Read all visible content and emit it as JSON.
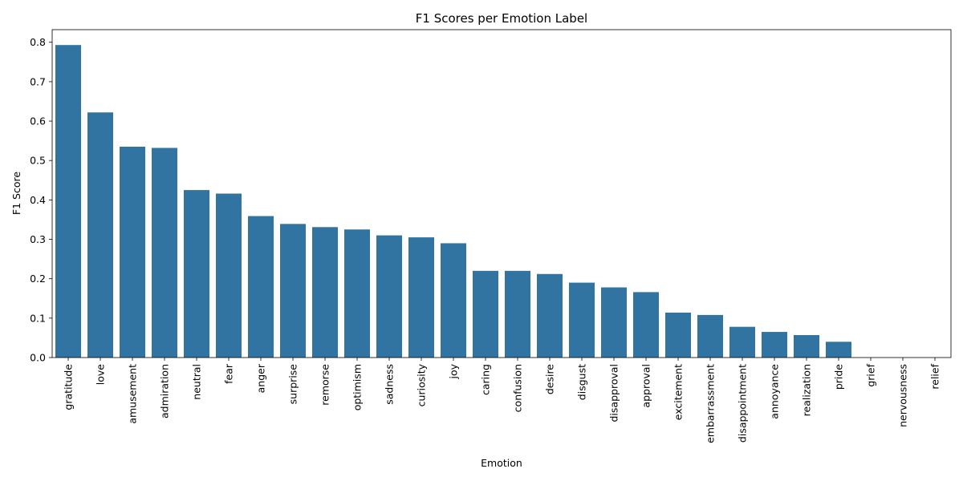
{
  "chart_data": {
    "type": "bar",
    "title": "F1 Scores per Emotion Label",
    "xlabel": "Emotion",
    "ylabel": "F1 Score",
    "categories": [
      "gratitude",
      "love",
      "amusement",
      "admiration",
      "neutral",
      "fear",
      "anger",
      "surprise",
      "remorse",
      "optimism",
      "sadness",
      "curiosity",
      "joy",
      "caring",
      "confusion",
      "desire",
      "disgust",
      "disapproval",
      "approval",
      "excitement",
      "embarrassment",
      "disappointment",
      "annoyance",
      "realization",
      "pride",
      "grief",
      "nervousness",
      "relief"
    ],
    "values": [
      0.793,
      0.622,
      0.535,
      0.532,
      0.425,
      0.416,
      0.359,
      0.339,
      0.331,
      0.325,
      0.31,
      0.305,
      0.29,
      0.22,
      0.22,
      0.212,
      0.19,
      0.178,
      0.166,
      0.114,
      0.108,
      0.078,
      0.065,
      0.057,
      0.04,
      0.0,
      0.0,
      0.0
    ],
    "ylim": [
      0,
      0.832
    ],
    "yticks": [
      0.0,
      0.1,
      0.2,
      0.3,
      0.4,
      0.5,
      0.6,
      0.7,
      0.8
    ],
    "ytick_labels": [
      "0.0",
      "0.1",
      "0.2",
      "0.3",
      "0.4",
      "0.5",
      "0.6",
      "0.7",
      "0.8"
    ],
    "grid": false,
    "legend": "none",
    "bar_color": "#3274a1",
    "axis_color": "#000000"
  }
}
